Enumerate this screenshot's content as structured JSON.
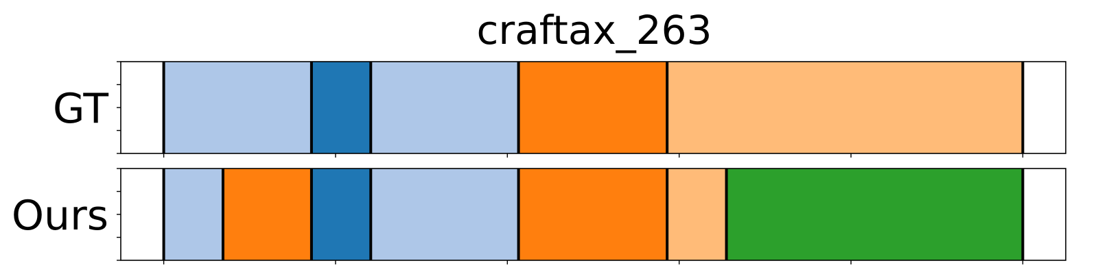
{
  "chart_data": {
    "type": "segmentation-timeline",
    "title": "craftax_263",
    "x_range": [
      0,
      1100
    ],
    "x_ticks": [
      50,
      250,
      450,
      650,
      850,
      1050
    ],
    "rows": [
      {
        "label": "GT",
        "segments": [
          {
            "start": 50,
            "end": 222,
            "color": "#aec7e8"
          },
          {
            "start": 222,
            "end": 291,
            "color": "#1f77b4"
          },
          {
            "start": 291,
            "end": 463,
            "color": "#aec7e8"
          },
          {
            "start": 463,
            "end": 636,
            "color": "#ff7f0e"
          },
          {
            "start": 636,
            "end": 1050,
            "color": "#ffbb78"
          }
        ]
      },
      {
        "label": "Ours",
        "segments": [
          {
            "start": 50,
            "end": 119,
            "color": "#aec7e8"
          },
          {
            "start": 119,
            "end": 222,
            "color": "#ff7f0e"
          },
          {
            "start": 222,
            "end": 291,
            "color": "#1f77b4"
          },
          {
            "start": 291,
            "end": 463,
            "color": "#aec7e8"
          },
          {
            "start": 463,
            "end": 636,
            "color": "#ff7f0e"
          },
          {
            "start": 636,
            "end": 705,
            "color": "#ffbb78"
          },
          {
            "start": 705,
            "end": 1050,
            "color": "#2ca02c"
          }
        ]
      }
    ]
  }
}
